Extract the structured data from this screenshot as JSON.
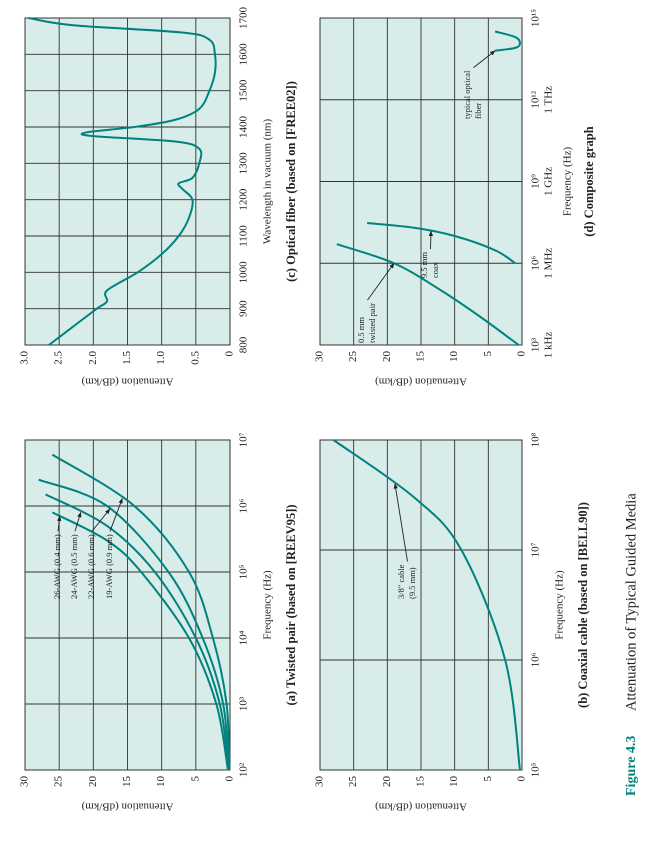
{
  "chart_data": [
    {
      "type": "line",
      "title": "(a) Twisted pair (based on [REEV95])",
      "x_label": "Frequency (Hz)",
      "y_label": "Attenuation (dB/km)",
      "x_scale": "log",
      "xlim": [
        100,
        10000000
      ],
      "ylim": [
        0,
        30
      ],
      "xticks": [
        {
          "value": 100,
          "label": "10²"
        },
        {
          "value": 1000,
          "label": "10³"
        },
        {
          "value": 10000,
          "label": "10⁴"
        },
        {
          "value": 100000,
          "label": "10⁵"
        },
        {
          "value": 1000000,
          "label": "10⁶"
        },
        {
          "value": 10000000,
          "label": "10⁷"
        }
      ],
      "yticks": [
        0,
        5,
        10,
        15,
        20,
        25,
        30
      ],
      "grid": true,
      "series": [
        {
          "name": "26-AWG (0.4 mm)",
          "color": "#00827f",
          "x": [
            100,
            1000,
            10000,
            100000,
            300000,
            800000
          ],
          "values": [
            0.3,
            2,
            6,
            13,
            18,
            26
          ]
        },
        {
          "name": "24-AWG (0.5 mm)",
          "color": "#00827f",
          "x": [
            100,
            1000,
            10000,
            100000,
            500000,
            1500000
          ],
          "values": [
            0.2,
            1.5,
            5,
            11,
            18,
            27
          ]
        },
        {
          "name": "22-AWG (0.6 mm)",
          "color": "#00827f",
          "x": [
            100,
            1000,
            10000,
            100000,
            1000000,
            2500000
          ],
          "values": [
            0.2,
            1,
            4,
            9,
            18,
            28
          ]
        },
        {
          "name": "19-AWG (0.9 mm)",
          "color": "#00827f",
          "x": [
            100,
            1000,
            10000,
            100000,
            1000000,
            6000000
          ],
          "values": [
            0.1,
            0.5,
            2.5,
            6,
            14,
            26
          ]
        }
      ]
    },
    {
      "type": "line",
      "title": "(b) Coaxial cable (based on [BELL90])",
      "x_label": "Frequency (Hz)",
      "y_label": "Attenuation (dB/km)",
      "x_scale": "log",
      "xlim": [
        100000,
        100000000
      ],
      "ylim": [
        0,
        30
      ],
      "xticks": [
        {
          "value": 100000,
          "label": "10⁵"
        },
        {
          "value": 1000000,
          "label": "10⁶"
        },
        {
          "value": 10000000,
          "label": "10⁷"
        },
        {
          "value": 100000000,
          "label": "10⁸"
        }
      ],
      "yticks": [
        0,
        5,
        10,
        15,
        20,
        25,
        30
      ],
      "grid": true,
      "series": [
        {
          "annotation": [
            "3/8\" cable",
            "(9.5 mm)"
          ],
          "color": "#00827f",
          "x": [
            100000,
            1000000,
            10000000,
            30000000,
            100000000
          ],
          "values": [
            0.3,
            2.5,
            9,
            16,
            28
          ]
        }
      ]
    },
    {
      "type": "line",
      "title": "(c) Optical fiber (based on [FREE02])",
      "x_label": "Wavelength in vacuum (nm)",
      "y_label": "Attenuation (dB/km)",
      "x_scale": "linear",
      "xlim": [
        800,
        1700
      ],
      "ylim": [
        0,
        3
      ],
      "xticks": [
        800,
        900,
        1000,
        1100,
        1200,
        1300,
        1400,
        1500,
        1600,
        1700
      ],
      "yticks": [
        0,
        0.5,
        {
          "value": 1,
          "label": "1.0"
        },
        1.5,
        {
          "value": 2,
          "label": "2.0"
        },
        2.5,
        {
          "value": 3,
          "label": "3.0"
        }
      ],
      "grid": true,
      "series": [
        {
          "color": "#00827f",
          "x": [
            800,
            850,
            900,
            920,
            950,
            1000,
            1050,
            1100,
            1150,
            1200,
            1230,
            1245,
            1260,
            1300,
            1340,
            1360,
            1375,
            1385,
            1400,
            1420,
            1450,
            1500,
            1550,
            1600,
            1640,
            1660,
            1680,
            1700
          ],
          "values": [
            2.65,
            2.3,
            1.95,
            1.8,
            1.8,
            1.35,
            1.0,
            0.75,
            0.6,
            0.55,
            0.7,
            0.75,
            0.55,
            0.45,
            0.45,
            0.8,
            2.0,
            2.1,
            1.4,
            0.8,
            0.45,
            0.3,
            0.22,
            0.22,
            0.3,
            0.7,
            2.3,
            2.95
          ]
        }
      ]
    },
    {
      "type": "line",
      "title": "(d) Composite graph",
      "x_label": "Frequency (Hz)",
      "y_label": "Attenuation (dB/km)",
      "x_scale": "log",
      "xlim": [
        1000,
        1000000000000000
      ],
      "ylim": [
        0,
        30
      ],
      "xticks": [
        {
          "value": 1000,
          "label": "10³",
          "sublabel": "1 kHz"
        },
        {
          "value": 1000000,
          "label": "10⁶",
          "sublabel": "1 MHz"
        },
        {
          "value": 1000000000,
          "label": "10⁹",
          "sublabel": "1 GHz"
        },
        {
          "value": 1000000000000,
          "label": "10¹²",
          "sublabel": "1 THz"
        },
        {
          "value": 1000000000000000,
          "label": "10¹⁵"
        }
      ],
      "yticks": [
        0,
        5,
        10,
        15,
        20,
        25,
        30
      ],
      "grid": true,
      "series": [
        {
          "annotation": [
            "0.5 mm",
            "twisted pair"
          ],
          "color": "#00827f",
          "x": [
            1000,
            10000,
            100000,
            1000000,
            5000000
          ],
          "values": [
            0.5,
            6,
            12,
            19,
            27.5
          ]
        },
        {
          "annotation": [
            "9.5 mm",
            "coax"
          ],
          "color": "#00827f",
          "x": [
            1000000,
            3000000,
            10000000,
            20000000,
            30000000
          ],
          "values": [
            1,
            4,
            10,
            16,
            23
          ]
        },
        {
          "annotation": [
            "typical optical",
            "fiber"
          ],
          "color": "#00827f",
          "x": [
            63000000000000,
            80000000000000,
            120000000000000,
            200000000000000,
            320000000000000
          ],
          "values": [
            4,
            1,
            0.3,
            1,
            4
          ]
        }
      ]
    }
  ],
  "figure": {
    "label": "Figure 4.3",
    "title": "Attenuation of Typical Guided Media"
  }
}
